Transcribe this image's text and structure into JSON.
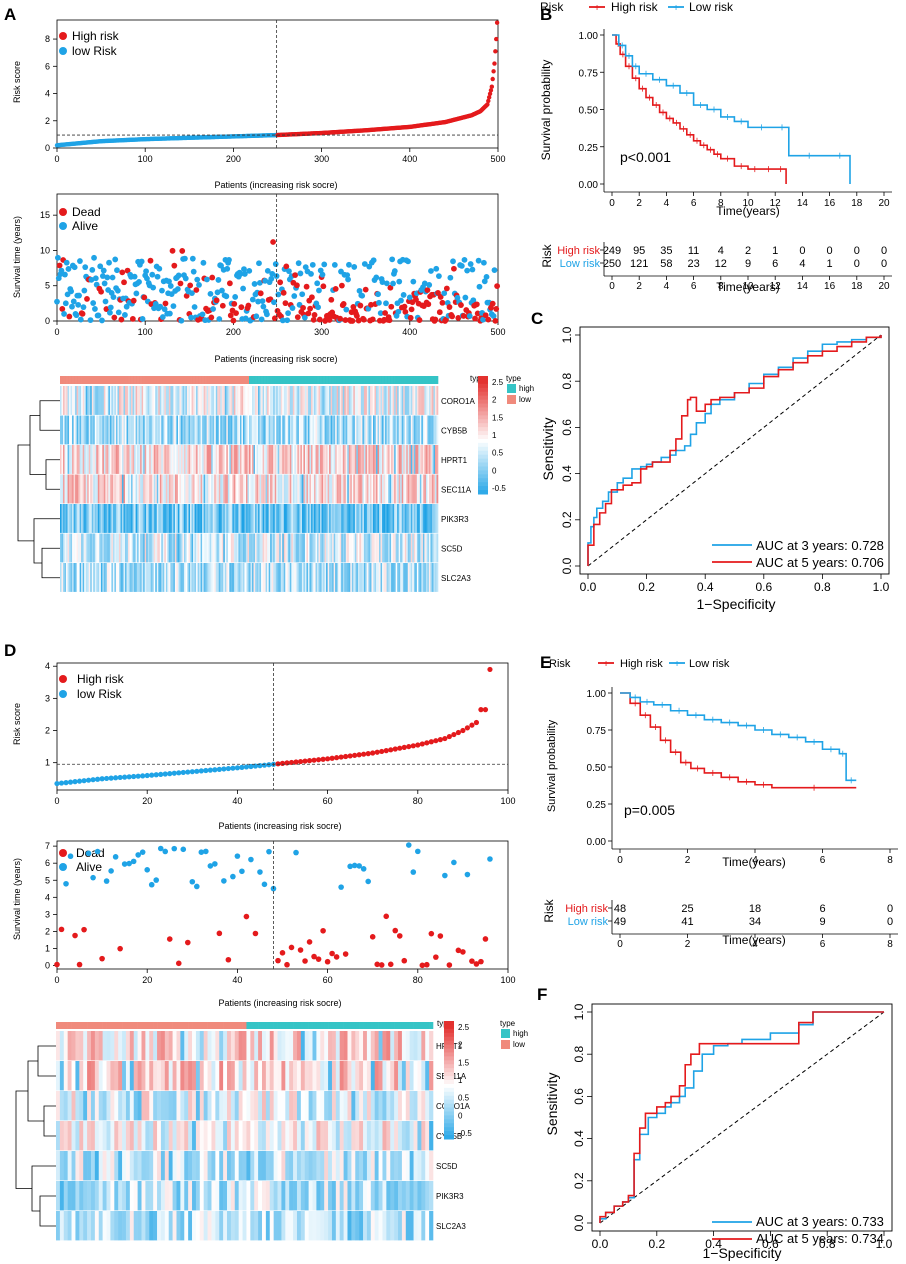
{
  "panel_labels": {
    "A": "A",
    "B": "B",
    "C": "C",
    "D": "D",
    "E": "E",
    "F": "F"
  },
  "colors": {
    "high": "#e41a1c",
    "low": "#1fa3e6",
    "heat_high": "#e3312f",
    "heat_mid": "#ffffff",
    "heat_low": "#1fa3e6",
    "type_high": "#35c4c6",
    "type_low": "#f08a7c"
  },
  "chart_data": [
    {
      "id": "A_risk",
      "type": "scatter",
      "n": 500,
      "cutoff_index": 249,
      "cutoff_value": 0.95,
      "x_ticks": [
        0,
        100,
        200,
        300,
        400,
        500
      ],
      "y_ticks": [
        0,
        2,
        4,
        6,
        8
      ],
      "ylim": [
        0,
        9.4
      ],
      "xlabel": "Patients (increasing risk socre)",
      "ylabel": "Risk score",
      "legend": [
        "High risk",
        "low Risk"
      ],
      "curve": [
        [
          0,
          0.2
        ],
        [
          50,
          0.5
        ],
        [
          100,
          0.65
        ],
        [
          150,
          0.75
        ],
        [
          200,
          0.85
        ],
        [
          249,
          0.95
        ],
        [
          300,
          1.1
        ],
        [
          350,
          1.3
        ],
        [
          400,
          1.55
        ],
        [
          440,
          1.9
        ],
        [
          470,
          2.4
        ],
        [
          480,
          2.7
        ],
        [
          488,
          3.2
        ],
        [
          493,
          4.5
        ],
        [
          496,
          6.2
        ],
        [
          498,
          8.0
        ],
        [
          499,
          9.2
        ]
      ]
    },
    {
      "id": "A_surv",
      "type": "scatter",
      "n": 500,
      "cutoff_index": 249,
      "x_ticks": [
        0,
        100,
        200,
        300,
        400,
        500
      ],
      "y_ticks": [
        0,
        5,
        10,
        15
      ],
      "ylim": [
        0,
        18
      ],
      "xlabel": "Patients (increasing risk socre)",
      "ylabel": "Survival time (years)",
      "legend": [
        "Dead",
        "Alive"
      ]
    },
    {
      "id": "A_heat",
      "type": "heatmap",
      "genes": [
        "CORO1A",
        "CYB5B",
        "HPRT1",
        "SEC11A",
        "PIK3R3",
        "SC5D",
        "SLC2A3"
      ],
      "legend_ticks": [
        "2.5",
        "2",
        "1.5",
        "1",
        "0.5",
        "0",
        "-0.5"
      ],
      "legend_title": "type",
      "type_title": "type",
      "type_labels": [
        "high",
        "low"
      ],
      "row_base": [
        0.9,
        0.45,
        1.25,
        1.2,
        0.05,
        0.7,
        0.5
      ],
      "columns": 250
    },
    {
      "id": "B_km",
      "type": "line",
      "title": "Risk",
      "legend": [
        "High risk",
        "Low risk"
      ],
      "x_ticks": [
        0,
        2,
        4,
        6,
        8,
        10,
        12,
        14,
        16,
        18,
        20
      ],
      "y_ticks": [
        "0.00",
        "0.25",
        "0.50",
        "0.75",
        "1.00"
      ],
      "xlim": [
        0,
        20
      ],
      "ylim": [
        0,
        1
      ],
      "xlabel": "Time(years)",
      "ylabel": "Survival probability",
      "pvalue": "p<0.001",
      "series": [
        {
          "name": "High risk",
          "x": [
            0,
            0.3,
            0.6,
            1,
            1.5,
            2,
            2.5,
            3,
            3.5,
            4,
            4.5,
            5,
            5.5,
            6,
            6.5,
            7,
            7.5,
            8,
            9,
            10,
            11,
            12,
            12.8
          ],
          "y": [
            1,
            0.94,
            0.87,
            0.79,
            0.71,
            0.64,
            0.58,
            0.53,
            0.48,
            0.44,
            0.41,
            0.37,
            0.33,
            0.29,
            0.26,
            0.23,
            0.2,
            0.17,
            0.12,
            0.1,
            0.1,
            0.1,
            0
          ]
        },
        {
          "name": "Low risk",
          "x": [
            0,
            0.5,
            1,
            1.5,
            2,
            3,
            4,
            5,
            6,
            7,
            8,
            9,
            10,
            12,
            13,
            16,
            17.5
          ],
          "y": [
            1,
            0.93,
            0.86,
            0.79,
            0.74,
            0.7,
            0.66,
            0.61,
            0.53,
            0.5,
            0.45,
            0.42,
            0.38,
            0.38,
            0.19,
            0.19,
            0
          ]
        }
      ],
      "risk_table": {
        "header": "Risk",
        "rows": [
          {
            "label": "High risk",
            "values": [
              "249",
              "95",
              "35",
              "11",
              "4",
              "2",
              "1",
              "0",
              "0",
              "0",
              "0"
            ]
          },
          {
            "label": "Low risk",
            "values": [
              "250",
              "121",
              "58",
              "23",
              "12",
              "9",
              "6",
              "4",
              "1",
              "0",
              "0"
            ]
          }
        ],
        "x_ticks": [
          "0",
          "2",
          "4",
          "6",
          "8",
          "10",
          "12",
          "14",
          "16",
          "18",
          "20"
        ],
        "xlabel": "Time(years)"
      }
    },
    {
      "id": "C_roc",
      "type": "line",
      "xlabel": "1−Specificity",
      "ylabel": "Sensitivity",
      "x_ticks": [
        "0.0",
        "0.2",
        "0.4",
        "0.6",
        "0.8",
        "1.0"
      ],
      "y_ticks": [
        "0.0",
        "0.2",
        "0.4",
        "0.6",
        "0.8",
        "1.0"
      ],
      "legend": [
        "AUC at 3 years: 0.728",
        "AUC at 5 years: 0.706"
      ],
      "series": [
        {
          "name": "3 years",
          "x": [
            0,
            0,
            0.01,
            0.02,
            0.03,
            0.05,
            0.07,
            0.1,
            0.12,
            0.15,
            0.18,
            0.2,
            0.22,
            0.25,
            0.28,
            0.3,
            0.33,
            0.35,
            0.37,
            0.4,
            0.42,
            0.45,
            0.5,
            0.55,
            0.6,
            0.65,
            0.7,
            0.75,
            0.8,
            0.85,
            0.9,
            0.95,
            1
          ],
          "y": [
            0,
            0.1,
            0.17,
            0.21,
            0.25,
            0.28,
            0.32,
            0.36,
            0.38,
            0.42,
            0.43,
            0.44,
            0.45,
            0.47,
            0.48,
            0.5,
            0.52,
            0.57,
            0.62,
            0.66,
            0.7,
            0.72,
            0.75,
            0.79,
            0.83,
            0.86,
            0.9,
            0.93,
            0.96,
            0.97,
            0.98,
            0.99,
            1
          ]
        },
        {
          "name": "5 years",
          "x": [
            0,
            0,
            0.02,
            0.04,
            0.06,
            0.08,
            0.1,
            0.12,
            0.15,
            0.18,
            0.2,
            0.22,
            0.25,
            0.28,
            0.3,
            0.32,
            0.34,
            0.35,
            0.37,
            0.4,
            0.42,
            0.45,
            0.5,
            0.55,
            0.6,
            0.65,
            0.7,
            0.75,
            0.8,
            0.85,
            0.9,
            0.95,
            1
          ],
          "y": [
            0,
            0.09,
            0.18,
            0.23,
            0.27,
            0.33,
            0.33,
            0.35,
            0.36,
            0.42,
            0.43,
            0.45,
            0.45,
            0.5,
            0.55,
            0.65,
            0.72,
            0.73,
            0.67,
            0.7,
            0.72,
            0.73,
            0.75,
            0.77,
            0.82,
            0.85,
            0.88,
            0.91,
            0.93,
            0.95,
            0.97,
            0.99,
            1
          ]
        }
      ]
    },
    {
      "id": "D_risk",
      "type": "scatter",
      "n": 97,
      "cutoff_index": 48,
      "cutoff_value": 0.95,
      "x_ticks": [
        0,
        20,
        40,
        60,
        80,
        100
      ],
      "y_ticks": [
        1,
        2,
        3,
        4
      ],
      "ylim": [
        0.15,
        4.1
      ],
      "xlabel": "Patients (increasing risk socre)",
      "ylabel": "Risk score",
      "legend": [
        "High risk",
        "low Risk"
      ],
      "curve": [
        [
          0,
          0.35
        ],
        [
          10,
          0.5
        ],
        [
          20,
          0.6
        ],
        [
          30,
          0.72
        ],
        [
          40,
          0.84
        ],
        [
          48,
          0.95
        ],
        [
          60,
          1.12
        ],
        [
          70,
          1.3
        ],
        [
          80,
          1.55
        ],
        [
          86,
          1.75
        ],
        [
          90,
          2.0
        ],
        [
          93,
          2.25
        ],
        [
          94,
          2.65
        ],
        [
          95,
          2.65
        ],
        [
          96,
          3.9
        ]
      ]
    },
    {
      "id": "D_surv",
      "type": "scatter",
      "n": 97,
      "cutoff_index": 48,
      "x_ticks": [
        0,
        20,
        40,
        60,
        80,
        100
      ],
      "y_ticks": [
        0,
        1,
        2,
        3,
        4,
        5,
        6,
        7
      ],
      "ylim": [
        -0.2,
        7.3
      ],
      "xlabel": "Patients (increasing risk socre)",
      "ylabel": "Survival time (years)",
      "legend": [
        "Dead",
        "Alive"
      ]
    },
    {
      "id": "D_heat",
      "type": "heatmap",
      "genes": [
        "HPRT1",
        "SEC11A",
        "CORO1A",
        "CYB5B",
        "SC5D",
        "PIK3R3",
        "SLC2A3"
      ],
      "legend_ticks": [
        "2.5",
        "2",
        "1.5",
        "1",
        "0.5",
        "0",
        "-0.5"
      ],
      "legend_title": "type",
      "type_title": "type",
      "type_labels": [
        "high",
        "low"
      ],
      "row_base": [
        1.3,
        1.3,
        0.85,
        0.95,
        0.7,
        0.55,
        0.5
      ],
      "columns": 97
    },
    {
      "id": "E_km",
      "type": "line",
      "title": "Risk",
      "legend": [
        "High risk",
        "Low risk"
      ],
      "x_ticks": [
        0,
        2,
        4,
        6,
        8
      ],
      "y_ticks": [
        "0.00",
        "0.25",
        "0.50",
        "0.75",
        "1.00"
      ],
      "xlim": [
        0,
        8
      ],
      "ylim": [
        0,
        1
      ],
      "xlabel": "Time(years)",
      "ylabel": "Survival probability",
      "pvalue": "p=0.005",
      "series": [
        {
          "name": "High risk",
          "x": [
            0,
            0.3,
            0.6,
            0.9,
            1.2,
            1.5,
            1.8,
            2.1,
            2.5,
            3,
            3.5,
            4,
            4.5,
            7
          ],
          "y": [
            1,
            0.93,
            0.85,
            0.77,
            0.68,
            0.6,
            0.53,
            0.49,
            0.46,
            0.43,
            0.4,
            0.38,
            0.36,
            0.36
          ]
        },
        {
          "name": "Low risk",
          "x": [
            0,
            0.3,
            0.6,
            1,
            1.5,
            2,
            2.5,
            3,
            3.5,
            4,
            4.5,
            5,
            5.5,
            6,
            6.5,
            6.7,
            7
          ],
          "y": [
            1,
            0.97,
            0.94,
            0.92,
            0.88,
            0.85,
            0.82,
            0.8,
            0.78,
            0.75,
            0.72,
            0.7,
            0.67,
            0.62,
            0.59,
            0.41,
            0.41
          ]
        }
      ],
      "risk_table": {
        "header": "Risk",
        "rows": [
          {
            "label": "High risk",
            "values": [
              "48",
              "25",
              "18",
              "6",
              "0"
            ]
          },
          {
            "label": "Low risk",
            "values": [
              "49",
              "41",
              "34",
              "9",
              "0"
            ]
          }
        ],
        "x_ticks": [
          "0",
          "2",
          "4",
          "6",
          "8"
        ],
        "xlabel": "Time(years)"
      }
    },
    {
      "id": "F_roc",
      "type": "line",
      "xlabel": "1−Specificity",
      "ylabel": "Sensitivity",
      "x_ticks": [
        "0.0",
        "0.2",
        "0.4",
        "0.6",
        "0.8",
        "1.0"
      ],
      "y_ticks": [
        "0.0",
        "0.2",
        "0.4",
        "0.6",
        "0.8",
        "1.0"
      ],
      "legend": [
        "AUC at 3 years: 0.733",
        "AUC at 5 years: 0.734"
      ],
      "series": [
        {
          "name": "3 years",
          "x": [
            0,
            0,
            0.02,
            0.05,
            0.08,
            0.1,
            0.12,
            0.14,
            0.17,
            0.2,
            0.23,
            0.25,
            0.28,
            0.3,
            0.33,
            0.36,
            0.4,
            0.45,
            0.5,
            0.55,
            0.6,
            0.65,
            0.7,
            0.72,
            0.75,
            0.8,
            0.9,
            1
          ],
          "y": [
            0,
            0.02,
            0.05,
            0.08,
            0.1,
            0.12,
            0.3,
            0.42,
            0.5,
            0.52,
            0.55,
            0.57,
            0.6,
            0.64,
            0.72,
            0.8,
            0.84,
            0.85,
            0.87,
            0.87,
            0.9,
            0.9,
            0.94,
            0.94,
            1,
            1,
            1,
            1
          ]
        },
        {
          "name": "5 years",
          "x": [
            0,
            0,
            0.02,
            0.05,
            0.08,
            0.1,
            0.12,
            0.14,
            0.16,
            0.2,
            0.23,
            0.25,
            0.28,
            0.3,
            0.32,
            0.35,
            0.38,
            0.42,
            0.48,
            0.55,
            0.6,
            0.65,
            0.7,
            0.75,
            0.8,
            0.9,
            1
          ],
          "y": [
            0,
            0.03,
            0.05,
            0.08,
            0.1,
            0.13,
            0.33,
            0.45,
            0.52,
            0.55,
            0.57,
            0.6,
            0.65,
            0.75,
            0.8,
            0.85,
            0.85,
            0.85,
            0.85,
            0.85,
            0.85,
            0.85,
            0.95,
            1,
            1,
            1,
            1
          ]
        }
      ]
    }
  ]
}
